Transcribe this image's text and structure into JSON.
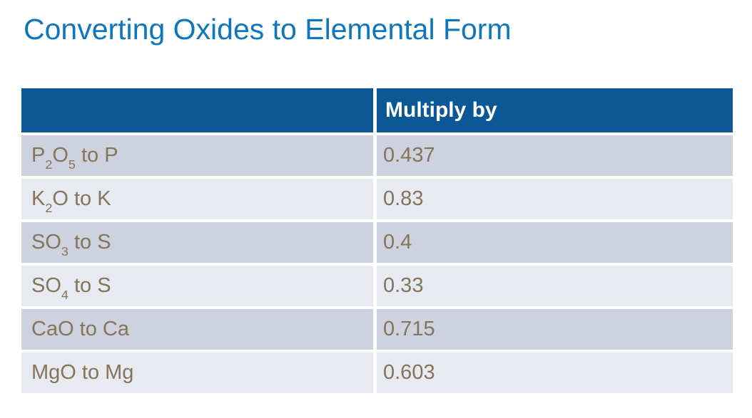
{
  "page": {
    "title": "Converting Oxides to Elemental Form"
  },
  "colors": {
    "title_blue": "#0E76BC",
    "header_blue": "#0C5795",
    "row_dark": "#CDD2DE",
    "row_light": "#E8EAF1",
    "row_text_brown": "#84755A",
    "header_text": "#FFFFFF",
    "background": "#FFFFFF"
  },
  "table": {
    "columns": [
      {
        "header": ""
      },
      {
        "header": "Multiply by"
      }
    ],
    "rows": [
      {
        "label_plain": "P2O5 to P",
        "label_rich": [
          {
            "text": "P"
          },
          {
            "sub": "2"
          },
          {
            "text": "O"
          },
          {
            "sub": "5"
          },
          {
            "text": " to P"
          }
        ],
        "value": "0.437"
      },
      {
        "label_plain": "K2O to K",
        "label_rich": [
          {
            "text": "K"
          },
          {
            "sub": "2"
          },
          {
            "text": "O to K"
          }
        ],
        "value": "0.83"
      },
      {
        "label_plain": "SO3 to S",
        "label_rich": [
          {
            "text": "SO"
          },
          {
            "sub": "3"
          },
          {
            "text": " to S"
          }
        ],
        "value": "0.4"
      },
      {
        "label_plain": "SO4 to S",
        "label_rich": [
          {
            "text": "SO"
          },
          {
            "sub": "4"
          },
          {
            "text": " to S"
          }
        ],
        "value": "0.33"
      },
      {
        "label_plain": "CaO to Ca",
        "label_rich": [
          {
            "text": "CaO to Ca"
          }
        ],
        "value": "0.715"
      },
      {
        "label_plain": "MgO to Mg",
        "label_rich": [
          {
            "text": "MgO to Mg"
          }
        ],
        "value": "0.603"
      }
    ]
  }
}
